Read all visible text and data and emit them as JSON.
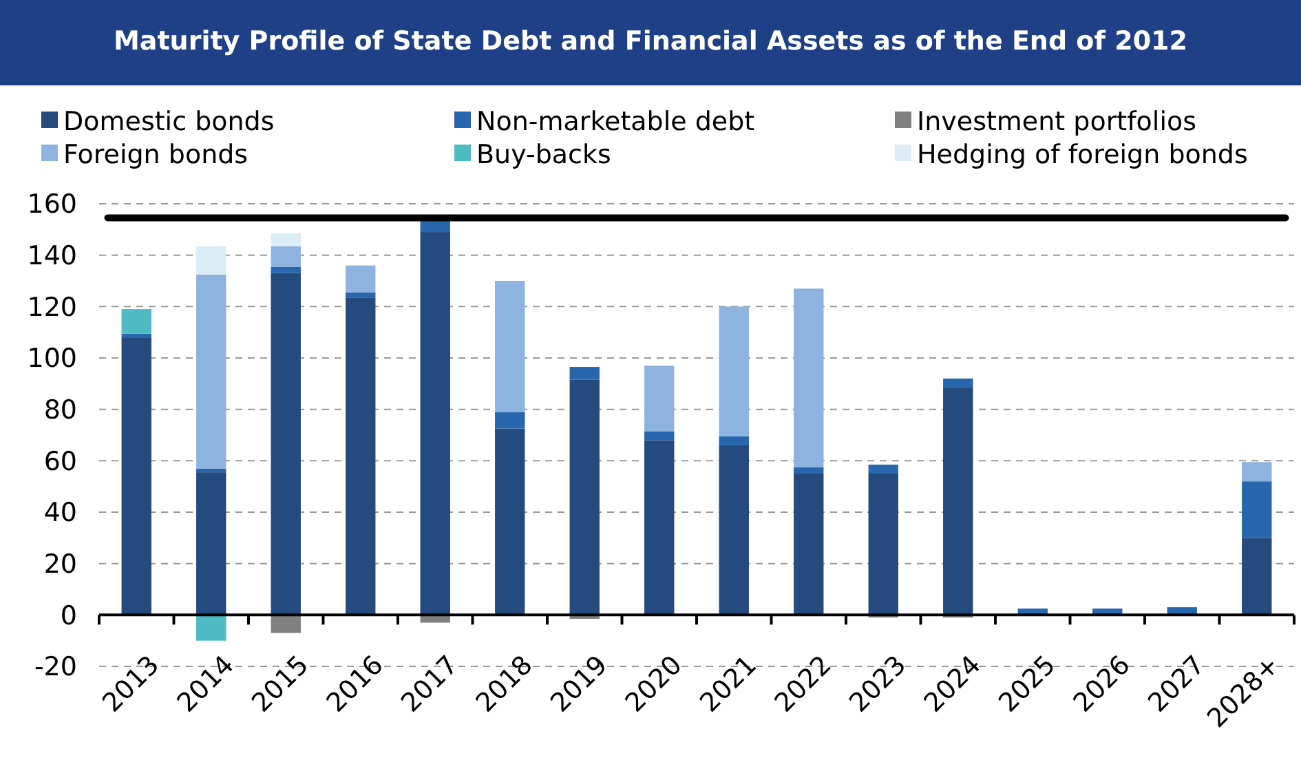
{
  "chart_data": {
    "type": "bar",
    "stacked": true,
    "title": "Maturity Profile of State Debt and Financial Assets as of the End of 2012",
    "categories": [
      "2013",
      "2014",
      "2015",
      "2016",
      "2017",
      "2018",
      "2019",
      "2020",
      "2021",
      "2022",
      "2023",
      "2024",
      "2025",
      "2026",
      "2027",
      "2028+"
    ],
    "series": [
      {
        "name": "Domestic bonds",
        "color": "#254a7e",
        "values": [
          108,
          55.5,
          133,
          123.5,
          149,
          72.5,
          91.5,
          68,
          66,
          55,
          55,
          88.5,
          0,
          0,
          0,
          30
        ]
      },
      {
        "name": "Non-marketable debt",
        "color": "#2866ad",
        "values": [
          1.5,
          1.5,
          2.5,
          2,
          5,
          6.5,
          5,
          3.5,
          3.5,
          2.5,
          3.5,
          3.5,
          2.5,
          2.5,
          3,
          22
        ]
      },
      {
        "name": "Investment portfolios",
        "color": "#808080",
        "values": [
          0,
          0,
          -7,
          0,
          -3,
          0,
          -1.5,
          0,
          0,
          0,
          -1,
          -1,
          0,
          0,
          0,
          0
        ]
      },
      {
        "name": "Foreign bonds",
        "color": "#8fb3e0",
        "values": [
          0,
          75.5,
          8,
          10.5,
          0,
          51,
          0,
          25.5,
          50.5,
          69.5,
          0,
          0,
          0,
          0,
          0,
          7.5
        ]
      },
      {
        "name": "Buy-backs",
        "color": "#4dbbc3",
        "values": [
          9.5,
          -10,
          0,
          0,
          0,
          0,
          0,
          0,
          0,
          0,
          0,
          0,
          0,
          0,
          0,
          0
        ]
      },
      {
        "name": "Hedging of foreign bonds",
        "color": "#dcedf5",
        "values": [
          0,
          11,
          5,
          0,
          0,
          0,
          0,
          0,
          0,
          0,
          0,
          0,
          0,
          0,
          0,
          0
        ]
      }
    ],
    "ylim": [
      -20,
      160
    ],
    "yticks": [
      -20,
      0,
      20,
      40,
      60,
      80,
      100,
      120,
      140,
      160
    ],
    "grid": "y",
    "legend": "top",
    "ref_lines": [
      {
        "axis": "y",
        "value": 154.5,
        "color": "#000000"
      }
    ]
  }
}
